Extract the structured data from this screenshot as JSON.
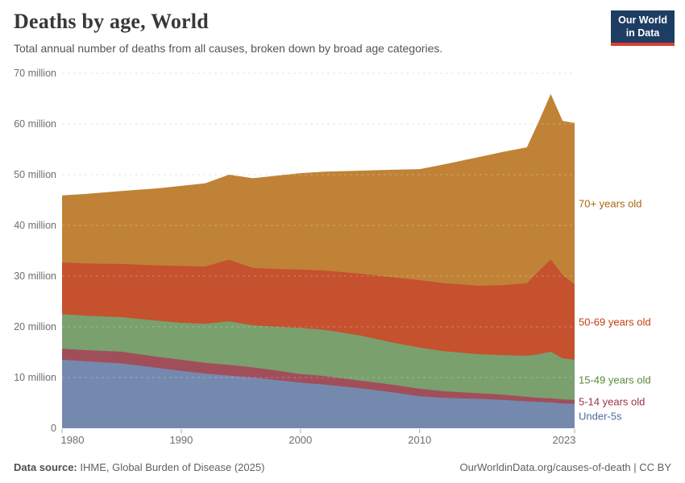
{
  "header": {
    "title": "Deaths by age, World",
    "subtitle": "Total annual number of deaths from all causes, broken down by broad age categories.",
    "logo": {
      "line1": "Our World",
      "line2": "in Data",
      "bg_color": "#1d3d63",
      "accent_color": "#dc3d33"
    }
  },
  "chart_data": {
    "type": "area",
    "stacked": true,
    "title": "Deaths by age, World",
    "xlabel": "",
    "ylabel": "",
    "grid": true,
    "legend_position": "right",
    "ylim": [
      0,
      70
    ],
    "x": [
      1980,
      1982,
      1985,
      1988,
      1990,
      1992,
      1994,
      1996,
      1998,
      2000,
      2002,
      2005,
      2008,
      2010,
      2012,
      2015,
      2017,
      2019,
      2020,
      2021,
      2022,
      2023
    ],
    "series": [
      {
        "name": "Under-5s",
        "unit": "million",
        "color": "#7589ae",
        "label_color": "#4f6ba3",
        "values": [
          13.5,
          13.2,
          12.8,
          11.9,
          11.3,
          10.8,
          10.4,
          10.0,
          9.5,
          9.0,
          8.6,
          7.9,
          7.0,
          6.3,
          6.0,
          5.8,
          5.6,
          5.3,
          5.2,
          5.1,
          4.9,
          4.8
        ]
      },
      {
        "name": "5-14 years old",
        "unit": "million",
        "color": "#a14e5b",
        "label_color": "#9e3347",
        "values": [
          2.2,
          2.2,
          2.3,
          2.2,
          2.2,
          2.1,
          2.1,
          2.0,
          1.9,
          1.7,
          1.7,
          1.5,
          1.5,
          1.5,
          1.3,
          1.1,
          1.0,
          0.9,
          0.8,
          0.8,
          0.8,
          0.8
        ]
      },
      {
        "name": "15-49 years old",
        "unit": "million",
        "color": "#7aa06e",
        "label_color": "#568a35",
        "values": [
          6.8,
          6.8,
          6.8,
          7.1,
          7.3,
          7.7,
          8.6,
          8.3,
          8.6,
          9.1,
          9.1,
          8.9,
          8.3,
          8.1,
          7.9,
          7.7,
          7.8,
          8.1,
          8.6,
          9.2,
          8.1,
          7.9
        ]
      },
      {
        "name": "50-69 years old",
        "unit": "million",
        "color": "#c5512e",
        "label_color": "#c33d0e",
        "values": [
          10.2,
          10.3,
          10.5,
          10.9,
          11.2,
          11.3,
          12.1,
          11.3,
          11.4,
          11.5,
          11.7,
          12.2,
          12.9,
          13.3,
          13.4,
          13.5,
          13.8,
          14.3,
          16.4,
          18.2,
          16.4,
          14.9
        ]
      },
      {
        "name": "70+ years old",
        "unit": "million",
        "color": "#c08236",
        "label_color": "#ad6410",
        "values": [
          13.2,
          13.7,
          14.4,
          15.2,
          15.8,
          16.4,
          16.8,
          17.7,
          18.4,
          19.0,
          19.5,
          20.3,
          21.3,
          21.9,
          23.4,
          25.4,
          26.3,
          26.8,
          29.5,
          32.6,
          30.4,
          31.8
        ]
      }
    ],
    "yticks": [
      {
        "value": 0,
        "label": "0"
      },
      {
        "value": 10,
        "label": "10 million"
      },
      {
        "value": 20,
        "label": "20 million"
      },
      {
        "value": 30,
        "label": "30 million"
      },
      {
        "value": 40,
        "label": "40 million"
      },
      {
        "value": 50,
        "label": "50 million"
      },
      {
        "value": 60,
        "label": "60 million"
      },
      {
        "value": 70,
        "label": "70 million"
      }
    ],
    "xticks": [
      {
        "value": 1980,
        "label": "1980"
      },
      {
        "value": 1990,
        "label": "1990"
      },
      {
        "value": 2000,
        "label": "2000"
      },
      {
        "value": 2010,
        "label": "2010"
      },
      {
        "value": 2023,
        "label": "2023"
      }
    ],
    "gridline_color": "#dcdcdc"
  },
  "footer": {
    "source_label": "Data source:",
    "source_value": " IHME, Global Burden of Disease (2025)",
    "link": "OurWorldinData.org/causes-of-death | CC BY"
  }
}
